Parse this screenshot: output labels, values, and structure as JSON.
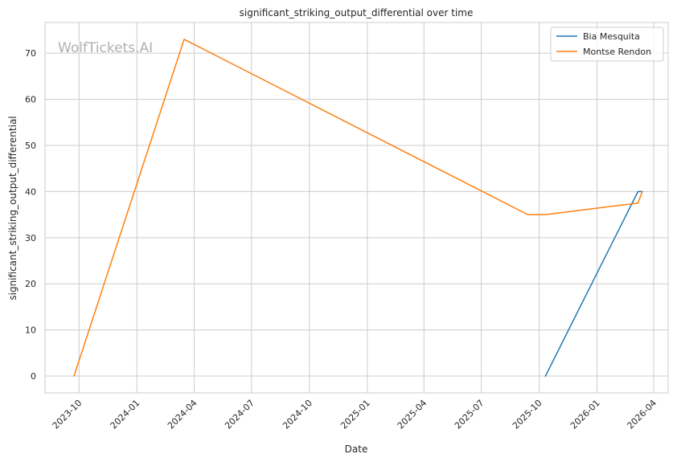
{
  "chart_data": {
    "type": "line",
    "title": "significant_striking_output_differential over time",
    "xlabel": "Date",
    "ylabel": "significant_striking_output_differential",
    "watermark": "WolfTickets.AI",
    "x_ticks": [
      "2023-10",
      "2024-01",
      "2024-04",
      "2024-07",
      "2024-10",
      "2025-01",
      "2025-04",
      "2025-07",
      "2025-10",
      "2026-01",
      "2026-04"
    ],
    "y_ticks": [
      0,
      10,
      20,
      30,
      40,
      50,
      60,
      70
    ],
    "xlim": [
      "2023-08-08",
      "2026-04-24"
    ],
    "ylim": [
      -3.65,
      76.65
    ],
    "grid": true,
    "legend_position": "top-right",
    "series": [
      {
        "name": "Bia Mesquita",
        "color": "#1f77b4",
        "points": [
          {
            "x": "2025-10-11",
            "y": 0
          },
          {
            "x": "2026-03-07",
            "y": 40
          },
          {
            "x": "2026-03-14",
            "y": 40
          }
        ]
      },
      {
        "name": "Montse Rendon",
        "color": "#ff7f0e",
        "points": [
          {
            "x": "2023-09-23",
            "y": 0
          },
          {
            "x": "2024-03-16",
            "y": 73
          },
          {
            "x": "2025-09-13",
            "y": 35
          },
          {
            "x": "2025-10-11",
            "y": 35
          },
          {
            "x": "2026-03-07",
            "y": 37.5
          },
          {
            "x": "2026-03-14",
            "y": 40
          }
        ]
      }
    ]
  }
}
